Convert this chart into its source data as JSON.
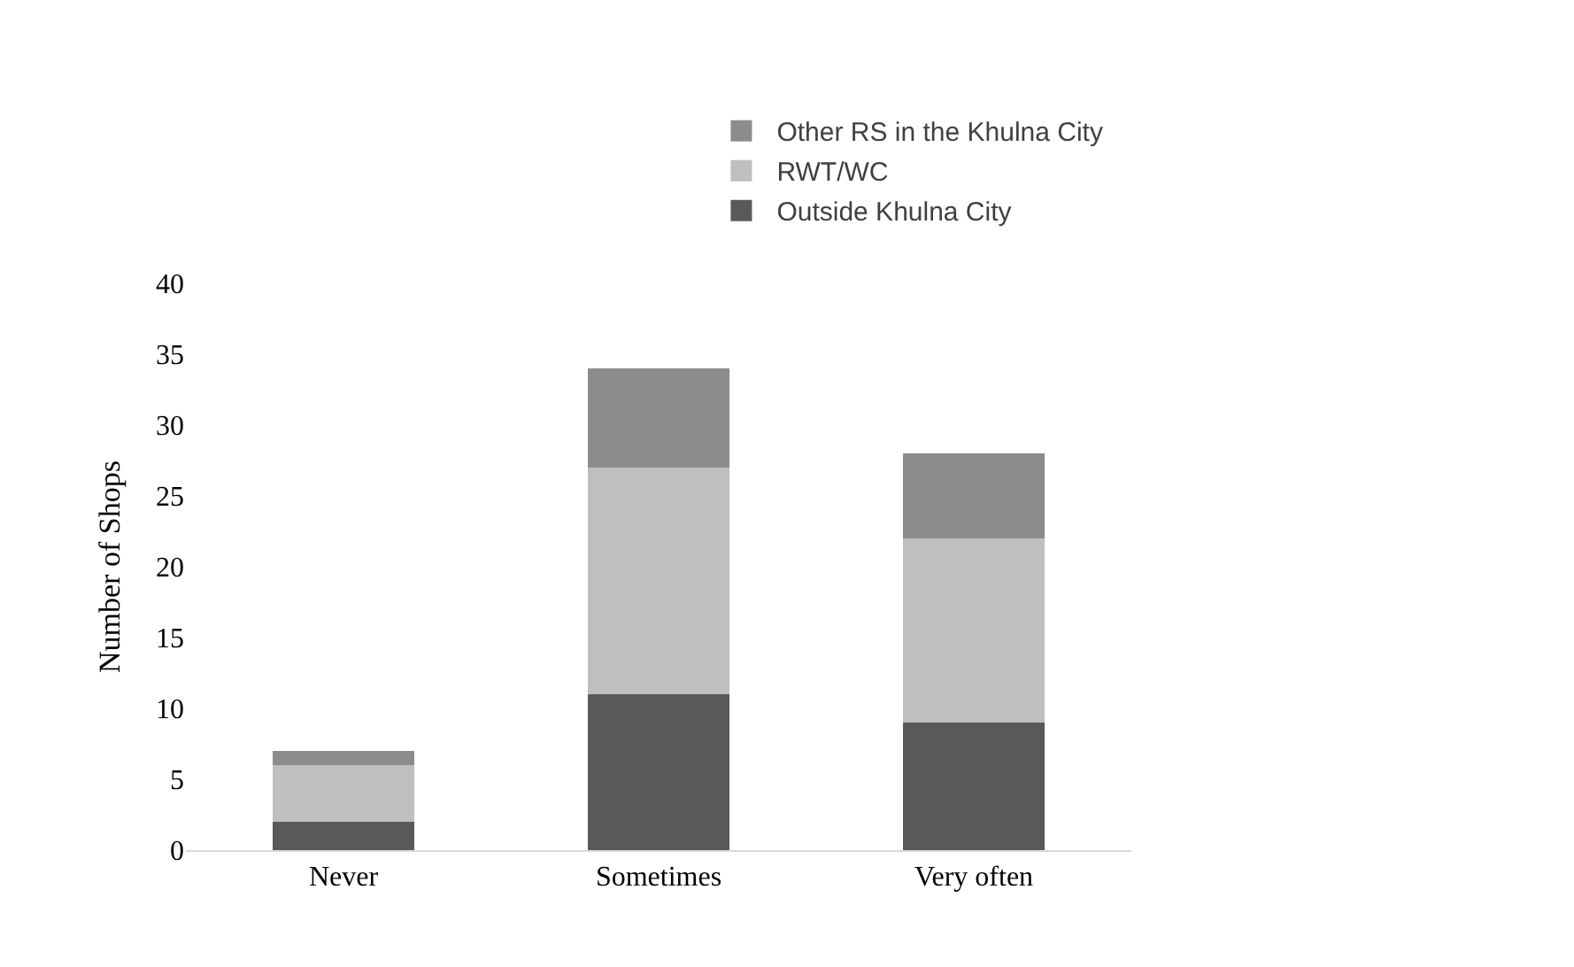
{
  "chart_data": {
    "type": "bar",
    "stacked": true,
    "ylabel": "Number of Shops",
    "categories": [
      "Never",
      "Sometimes",
      "Very often"
    ],
    "series": [
      {
        "name": "Outside Khulna City",
        "color": "#595959",
        "values": [
          2,
          11,
          9
        ]
      },
      {
        "name": "RWT/WC",
        "color": "#bfbfbf",
        "values": [
          4,
          16,
          13
        ]
      },
      {
        "name": "Other RS in the Khulna City",
        "color": "#8c8c8c",
        "values": [
          1,
          7,
          6
        ]
      }
    ],
    "ylim": [
      0,
      40
    ],
    "yticks": [
      0,
      5,
      10,
      15,
      20,
      25,
      30,
      35,
      40
    ],
    "grid": false,
    "legend": "top"
  }
}
